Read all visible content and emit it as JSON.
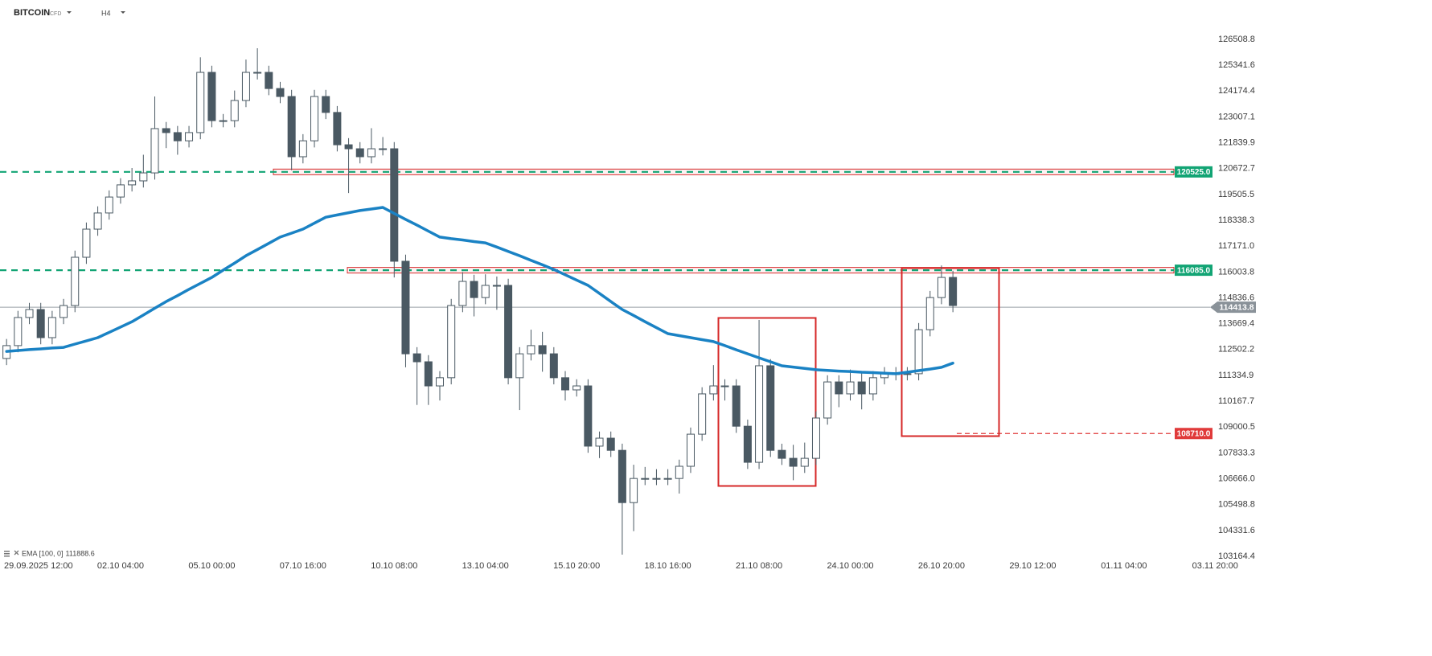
{
  "chart_data": {
    "type": "candlestick",
    "title": "BITCOIN",
    "instrument_type": "CFD",
    "timeframe": "H4",
    "up_color": "#ffffff",
    "down_color": "#4a5963",
    "xlim": [
      -5.15,
      212.05
    ],
    "ylim": [
      102874,
      127199
    ],
    "yticks": [
      126508.8,
      125341.6,
      124174.4,
      123007.1,
      121839.9,
      120672.7,
      119505.5,
      118338.3,
      {
        "value": 117171,
        "label": "117171.0"
      },
      116003.8,
      114836.6,
      113669.4,
      112502.2,
      111334.9,
      110167.7,
      109000.5,
      107833.3,
      {
        "value": 106666,
        "label": "106666.0"
      },
      105498.8,
      104331.6,
      103164.4
    ],
    "xticks": [
      {
        "value": 0,
        "label": "29.09.2025 12:00"
      },
      {
        "value": 16,
        "label": "02.10 04:00"
      },
      {
        "value": 32,
        "label": "05.10 00:00"
      },
      {
        "value": 48,
        "label": "07.10 16:00"
      },
      {
        "value": 64,
        "label": "10.10 08:00"
      },
      {
        "value": 80,
        "label": "13.10 04:00"
      },
      {
        "value": 96,
        "label": "15.10 20:00"
      },
      {
        "value": 112,
        "label": "18.10 16:00"
      },
      {
        "value": 128,
        "label": "21.10 08:00"
      },
      {
        "value": 144,
        "label": "24.10 00:00"
      },
      {
        "value": 160,
        "label": "26.10 20:00"
      },
      {
        "value": 176,
        "label": "29.10 12:00"
      },
      {
        "value": 192,
        "label": "01.11 04:00"
      },
      {
        "value": 208,
        "label": "03.11 20:00"
      }
    ],
    "x": [
      -4,
      -2,
      0,
      2,
      4,
      6,
      8,
      10,
      12,
      14,
      16,
      18,
      20,
      22,
      24,
      26,
      28,
      30,
      32,
      34,
      36,
      38,
      40,
      42,
      44,
      46,
      48,
      50,
      52,
      54,
      56,
      58,
      60,
      62,
      64,
      66,
      68,
      70,
      72,
      74,
      76,
      78,
      80,
      82,
      84,
      86,
      88,
      90,
      92,
      94,
      96,
      98,
      100,
      102,
      104,
      106,
      108,
      110,
      112,
      114,
      116,
      118,
      120,
      122,
      124,
      126,
      128,
      130,
      132,
      134,
      136,
      138,
      140,
      142,
      144,
      146,
      148,
      150,
      152,
      154,
      156,
      158,
      160,
      162
    ],
    "open": [
      112100,
      112680,
      113950,
      114310,
      113040,
      113950,
      114490,
      116670,
      117940,
      118670,
      119390,
      119940,
      120120,
      120480,
      122480,
      122300,
      121930,
      122300,
      125020,
      122840,
      122840,
      123750,
      125020,
      125020,
      124290,
      123930,
      121210,
      121930,
      123930,
      123210,
      121750,
      121570,
      121210,
      121570,
      121570,
      116490,
      112310,
      111950,
      110860,
      111230,
      114490,
      115580,
      114850,
      115400,
      115400,
      111230,
      112310,
      112680,
      112310,
      111230,
      110680,
      110860,
      108140,
      108500,
      107950,
      105590,
      106680,
      106680,
      106680,
      106680,
      107230,
      108680,
      110500,
      110860,
      110860,
      109040,
      107410,
      111770,
      107950,
      107590,
      107230,
      107590,
      109410,
      111040,
      110500,
      111040,
      110500,
      111230,
      111410,
      111410,
      111410,
      113400,
      114850,
      115760
    ],
    "high": [
      112980,
      114250,
      114610,
      114610,
      114250,
      114790,
      116970,
      118240,
      118970,
      119690,
      120240,
      120700,
      121300,
      123930,
      122780,
      122600,
      122600,
      125700,
      125320,
      123140,
      124200,
      125600,
      126110,
      125320,
      124590,
      124230,
      122230,
      124230,
      124230,
      123500,
      122050,
      121870,
      122500,
      122100,
      121870,
      116790,
      112610,
      112250,
      111530,
      114790,
      116000,
      115880,
      115900,
      115800,
      115700,
      112610,
      113400,
      113300,
      112610,
      111530,
      111160,
      111160,
      108800,
      108800,
      108250,
      107300,
      107200,
      107100,
      107100,
      107530,
      108980,
      110800,
      111800,
      111160,
      111160,
      109340,
      113840,
      112070,
      108250,
      108200,
      108300,
      109710,
      111340,
      111340,
      111600,
      111500,
      111530,
      111710,
      111710,
      111710,
      113700,
      115150,
      116300,
      116060
    ],
    "low": [
      111800,
      112380,
      113650,
      112740,
      112740,
      113650,
      114190,
      116370,
      117640,
      118370,
      119090,
      119640,
      119820,
      120180,
      121600,
      121300,
      121630,
      122000,
      122540,
      122540,
      122540,
      123450,
      124700,
      123990,
      123630,
      120600,
      120910,
      121630,
      122910,
      121450,
      119570,
      120910,
      120910,
      121270,
      115760,
      111700,
      110000,
      110000,
      110200,
      110930,
      114190,
      114000,
      114550,
      114300,
      110930,
      109770,
      112010,
      111500,
      110930,
      110200,
      110380,
      107840,
      107600,
      107650,
      103240,
      104300,
      106380,
      106380,
      106380,
      106000,
      106930,
      108380,
      110200,
      110200,
      108740,
      107110,
      107110,
      107650,
      107290,
      106600,
      106930,
      107290,
      109110,
      109900,
      110200,
      109800,
      110200,
      110930,
      111110,
      111110,
      111110,
      113100,
      114550,
      114190
    ],
    "close": [
      112680,
      113950,
      114310,
      113040,
      113950,
      114490,
      116670,
      117940,
      118670,
      119390,
      119940,
      120120,
      120480,
      122480,
      122300,
      121930,
      122300,
      125020,
      122840,
      122840,
      123750,
      125020,
      125020,
      124290,
      123930,
      121210,
      121930,
      123930,
      123210,
      121750,
      121570,
      121210,
      121570,
      121570,
      116490,
      112310,
      111950,
      110860,
      111230,
      114490,
      115580,
      114850,
      115400,
      115400,
      111230,
      112310,
      112680,
      112310,
      111230,
      110680,
      110860,
      108140,
      108500,
      107950,
      105590,
      106680,
      106680,
      106680,
      106680,
      107230,
      108680,
      110500,
      110860,
      110860,
      109040,
      107410,
      111770,
      107950,
      107590,
      107230,
      107590,
      109410,
      111040,
      110500,
      111040,
      110500,
      111230,
      111410,
      111410,
      111410,
      113400,
      114850,
      115760,
      114490
    ],
    "series": [
      {
        "name": "EMA [100, 0]",
        "color": "#1a82c4",
        "values": [
          112420,
          112460,
          112500,
          112530,
          112570,
          112600,
          112750,
          112890,
          113040,
          113280,
          113520,
          113760,
          114060,
          114370,
          114670,
          114940,
          115220,
          115490,
          115760,
          116090,
          116410,
          116740,
          117020,
          117300,
          117580,
          117760,
          117940,
          118210,
          118480,
          118580,
          118680,
          118780,
          118850,
          118920,
          118650,
          118380,
          118120,
          117850,
          117580,
          117510,
          117450,
          117380,
          117320,
          117130,
          116930,
          116740,
          116530,
          116330,
          116120,
          115880,
          115640,
          115400,
          115040,
          114670,
          114310,
          114040,
          113760,
          113490,
          113220,
          113130,
          113040,
          112950,
          112860,
          112680,
          112490,
          112310,
          112130,
          111950,
          111770,
          111710,
          111650,
          111590,
          111560,
          111530,
          111510,
          111480,
          111460,
          111430,
          111410,
          111480,
          111550,
          111620,
          111700,
          111888.6
        ]
      }
    ],
    "levels": [
      {
        "value": 120525,
        "label": "120525.0",
        "color": "#12a474"
      },
      {
        "value": 116085,
        "label": "116085.0",
        "color": "#12a474"
      },
      {
        "value": 108710,
        "label": "108710.0",
        "color": "#e03a3a"
      }
    ],
    "last_price": 114413.8
  }
}
